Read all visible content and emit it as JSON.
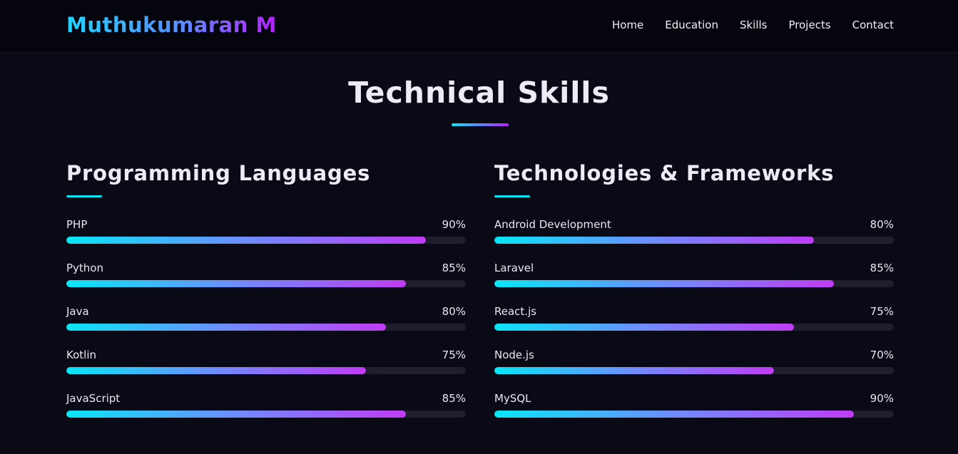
{
  "header": {
    "logo": "Muthukumaran M",
    "nav": [
      "Home",
      "Education",
      "Skills",
      "Projects",
      "Contact"
    ]
  },
  "section": {
    "title": "Technical Skills"
  },
  "programming": {
    "title": "Programming Languages",
    "skills": [
      {
        "name": "PHP",
        "percent_label": "90%",
        "level": 90
      },
      {
        "name": "Python",
        "percent_label": "85%",
        "level": 85
      },
      {
        "name": "Java",
        "percent_label": "80%",
        "level": 80
      },
      {
        "name": "Kotlin",
        "percent_label": "75%",
        "level": 75
      },
      {
        "name": "JavaScript",
        "percent_label": "85%",
        "level": 85
      }
    ]
  },
  "technologies": {
    "title": "Technologies & Frameworks",
    "skills": [
      {
        "name": "Android Development",
        "percent_label": "80%",
        "level": 80
      },
      {
        "name": "Laravel",
        "percent_label": "85%",
        "level": 85
      },
      {
        "name": "React.js",
        "percent_label": "75%",
        "level": 75
      },
      {
        "name": "Node.js",
        "percent_label": "70%",
        "level": 70
      },
      {
        "name": "MySQL",
        "percent_label": "90%",
        "level": 90
      }
    ]
  },
  "colors": {
    "background": "#0a0a16",
    "accent_start": "#08e6f5",
    "accent_end": "#c03cf5"
  }
}
